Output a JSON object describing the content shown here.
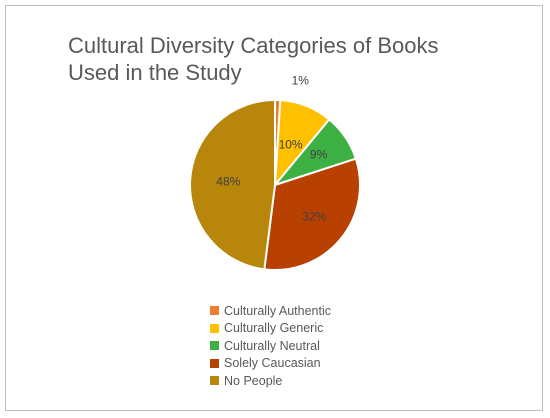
{
  "chart_data": {
    "type": "pie",
    "title": "Cultural Diversity Categories of  Books Used in the Study",
    "categories": [
      "Culturally Authentic",
      "Culturally Generic",
      "Culturally Neutral",
      "Solely Caucasian",
      "No People"
    ],
    "values": [
      1,
      10,
      9,
      32,
      48
    ],
    "labels": [
      "1%",
      "10%",
      "9%",
      "32%",
      "48%"
    ],
    "colors": [
      "#ed7d31",
      "#ffc000",
      "#3cb043",
      "#b84000",
      "#b8860b"
    ],
    "legend": "bottom"
  }
}
